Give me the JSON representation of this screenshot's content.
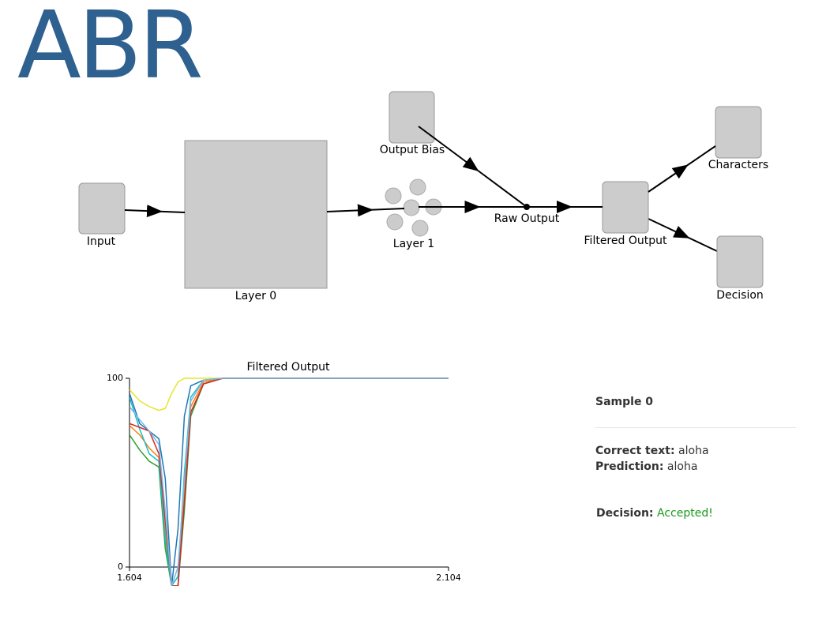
{
  "logo": "ABR",
  "nodes": {
    "input": "Input",
    "layer0": "Layer 0",
    "output_bias": "Output Bias",
    "layer1": "Layer 1",
    "raw_output": "Raw Output",
    "filtered_output": "Filtered Output",
    "characters": "Characters",
    "decision": "Decision"
  },
  "chart_data": {
    "type": "line",
    "title": "Filtered Output",
    "x": [
      1.604,
      1.62,
      1.635,
      1.65,
      1.66,
      1.67,
      1.68,
      1.69,
      1.7,
      1.72,
      1.75,
      1.8,
      1.9,
      2.0,
      2.104
    ],
    "series": [
      {
        "color": "#e5e52e",
        "values": [
          94,
          88,
          85,
          83,
          84,
          92,
          98,
          100,
          100,
          100,
          100,
          100,
          100,
          100,
          100
        ]
      },
      {
        "color": "#1f77b4",
        "values": [
          92,
          76,
          72,
          68,
          47,
          -10,
          20,
          80,
          96,
          99,
          100,
          100,
          100,
          100,
          100
        ]
      },
      {
        "color": "#ff7f0e",
        "values": [
          75,
          70,
          63,
          58,
          20,
          -10,
          -10,
          40,
          85,
          98,
          100,
          100,
          100,
          100,
          100
        ]
      },
      {
        "color": "#2ca02c",
        "values": [
          70,
          62,
          56,
          53,
          10,
          -10,
          -10,
          30,
          80,
          97,
          100,
          100,
          100,
          100,
          100
        ]
      },
      {
        "color": "#17becf",
        "values": [
          90,
          73,
          60,
          56,
          15,
          -10,
          -5,
          50,
          90,
          99,
          100,
          100,
          100,
          100,
          100
        ]
      },
      {
        "color": "#d62728",
        "values": [
          76,
          74,
          72,
          60,
          25,
          -10,
          -10,
          35,
          82,
          97,
          100,
          100,
          100,
          100,
          100
        ]
      },
      {
        "color": "#7fb8e0",
        "values": [
          85,
          78,
          72,
          65,
          30,
          -10,
          0,
          45,
          88,
          99,
          100,
          100,
          100,
          100,
          100
        ]
      }
    ],
    "xlim": [
      1.604,
      2.104
    ],
    "xticks": [
      1.604,
      2.104
    ],
    "ylim": [
      0,
      100
    ],
    "yticks": [
      0,
      100
    ]
  },
  "panel": {
    "sample": "Sample 0",
    "correct_label": "Correct text:",
    "correct": "aloha",
    "prediction_label": "Prediction:",
    "prediction": "aloha",
    "decision_label": "Decision:",
    "decision": "Accepted!"
  }
}
